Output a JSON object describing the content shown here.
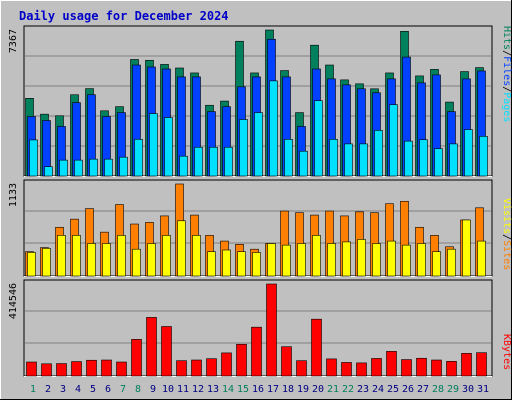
{
  "title": "Daily usage for December 2024",
  "colors": {
    "background": "#c0c0c0",
    "title": "#0000c8",
    "hits": "#00805c",
    "files": "#0040ff",
    "pages": "#00e0ff",
    "visits": "#ff8000",
    "sites": "#ffff00",
    "kbytes": "#ff0000",
    "weekday_label": "#000080",
    "weekend_label": "#00805c"
  },
  "chart_data": [
    {
      "type": "bar",
      "name": "hits-files-pages",
      "ymax_label": "7367",
      "ymax": 7367,
      "legend": [
        "Pages",
        "/",
        "Files",
        "/",
        "Hits"
      ],
      "series": [
        {
          "name": "Hits",
          "values": [
            3920,
            3120,
            3040,
            4100,
            4410,
            3290,
            3500,
            5880,
            5840,
            5630,
            5450,
            5200,
            3570,
            3780,
            6800,
            5200,
            7367,
            5320,
            3200,
            6600,
            5600,
            4850,
            4650,
            4400,
            5200,
            7300,
            5050,
            5380,
            3730,
            5270,
            5470
          ]
        },
        {
          "name": "Files",
          "values": [
            3000,
            2800,
            2500,
            3700,
            4100,
            3000,
            3200,
            5600,
            5500,
            5400,
            5000,
            5000,
            3250,
            3500,
            4500,
            5000,
            6900,
            5000,
            2500,
            5400,
            4900,
            4600,
            4400,
            4200,
            4900,
            6000,
            4700,
            5100,
            3250,
            4900,
            5300
          ]
        },
        {
          "name": "Pages",
          "values": [
            1820,
            470,
            800,
            800,
            850,
            850,
            950,
            1850,
            3150,
            2950,
            1000,
            1450,
            1450,
            1450,
            2850,
            3200,
            4800,
            1850,
            1250,
            3800,
            1850,
            1620,
            1620,
            2300,
            3600,
            1760,
            1830,
            1380,
            1620,
            2340,
            2000
          ]
        }
      ]
    },
    {
      "type": "bar",
      "name": "visits-sites",
      "ymax_label": "1133",
      "ymax": 1133,
      "legend": [
        "Sites",
        "/",
        "Visits"
      ],
      "series": [
        {
          "name": "Visits",
          "values": [
            300,
            350,
            600,
            700,
            830,
            540,
            880,
            640,
            660,
            740,
            1133,
            750,
            500,
            430,
            390,
            330,
            400,
            800,
            780,
            750,
            800,
            740,
            790,
            780,
            890,
            920,
            600,
            500,
            360,
            690,
            840
          ]
        },
        {
          "name": "Sites",
          "values": [
            290,
            340,
            500,
            500,
            400,
            400,
            500,
            330,
            400,
            500,
            680,
            500,
            300,
            320,
            300,
            290,
            400,
            380,
            400,
            500,
            400,
            420,
            450,
            400,
            430,
            380,
            400,
            300,
            330,
            690,
            430
          ]
        }
      ]
    },
    {
      "type": "bar",
      "name": "kbytes",
      "ymax_label": "414546",
      "ymax": 414546,
      "legend": [
        "KBytes"
      ],
      "series": [
        {
          "name": "KBytes",
          "values": [
            63000,
            55000,
            56000,
            65000,
            71000,
            72000,
            63000,
            165000,
            264000,
            223000,
            69000,
            72000,
            78000,
            104000,
            143000,
            220000,
            414546,
            132000,
            69000,
            256000,
            77000,
            61000,
            59000,
            79000,
            111000,
            74000,
            80000,
            72000,
            66000,
            102000,
            105000
          ]
        }
      ]
    }
  ],
  "days": [
    "1",
    "2",
    "3",
    "4",
    "5",
    "6",
    "7",
    "8",
    "9",
    "10",
    "11",
    "12",
    "13",
    "14",
    "15",
    "16",
    "17",
    "18",
    "19",
    "20",
    "21",
    "22",
    "23",
    "24",
    "25",
    "26",
    "27",
    "28",
    "29",
    "30",
    "31"
  ],
  "weekend_days": [
    1,
    7,
    8,
    14,
    15,
    21,
    22,
    28,
    29
  ]
}
